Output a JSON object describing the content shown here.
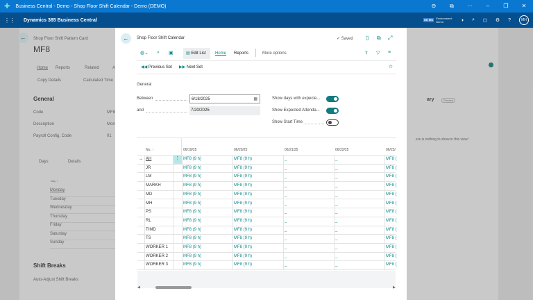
{
  "window": {
    "title": "Business Central - Demo - Shop Floor Shift Calendar - Demo (DEMO)",
    "controls": [
      "zoom-icon",
      "share-icon",
      "more-icon",
      "minimize-icon",
      "restore-icon",
      "close-icon"
    ]
  },
  "nav": {
    "app_name": "Dynamics 365 Business Central",
    "env_badge": "DE MO",
    "env_label": "Environment:",
    "env_name": "Demo",
    "avatar": "MH"
  },
  "background": {
    "breadcrumb": "Shop Floor Shift Pattern Card",
    "title": "MF8",
    "tabs": [
      "Home",
      "Reports",
      "Related",
      "A"
    ],
    "actions": [
      "Copy Details",
      "Calculated Time"
    ],
    "general": "General",
    "fields": [
      {
        "label": "Code",
        "value": "MF8"
      },
      {
        "label": "Description",
        "value": "Mon"
      },
      {
        "label": "Payroll Config. Code",
        "value": "01"
      }
    ],
    "days_tab": "Days",
    "details": "Details",
    "day_header": "Day ↑",
    "days": [
      "Monday",
      "Tuesday",
      "Wednesday",
      "Thursday",
      "Friday",
      "Saturday",
      "Sunday"
    ],
    "shift_breaks": "Shift Breaks",
    "auto_adjust": "Auto-Adjust Shift Breaks",
    "factbox_title": "ary",
    "factbox_badge": "Preview",
    "factbox_empty": "ere is nothing to show in this view!"
  },
  "modal": {
    "title": "Shop Floor Shift Calendar",
    "saved": "✓ Saved",
    "toolbar": {
      "edit_list": "Edit List",
      "home": "Home",
      "reports": "Reports",
      "more": "More options"
    },
    "actions": {
      "prev": "Previous Set",
      "next": "Next Set"
    },
    "section": "General",
    "between_label": "Between",
    "between_value": "6/18/2025",
    "and_label": "and",
    "and_value": "7/20/2025",
    "toggles": [
      {
        "label": "Show days with expecte...",
        "on": true
      },
      {
        "label": "Show Expected Attenda...",
        "on": true
      },
      {
        "label": "Show Start Time",
        "on": false
      }
    ],
    "grid": {
      "no_header": "No. ↑",
      "date_headers": [
        "06/19/25",
        "06/20/25",
        "06/21/25",
        "06/22/25",
        "06/23/"
      ],
      "rows": [
        {
          "no": "AH",
          "cells": [
            "MF8 (9 h)",
            "MF8 (9 h)",
            "_",
            "_",
            "MF8 ("
          ]
        },
        {
          "no": "JR",
          "cells": [
            "MF8 (9 h)",
            "MF8 (9 h)",
            "_",
            "_",
            "MF8 ("
          ]
        },
        {
          "no": "LM",
          "cells": [
            "MF8 (9 h)",
            "MF8 (9 h)",
            "_",
            "_",
            "MF8 ("
          ]
        },
        {
          "no": "MARKH",
          "cells": [
            "MF8 (9 h)",
            "MF8 (9 h)",
            "_",
            "_",
            "MF8 ("
          ]
        },
        {
          "no": "MD",
          "cells": [
            "MF8 (9 h)",
            "MF8 (9 h)",
            "_",
            "_",
            "MF8 ("
          ]
        },
        {
          "no": "MH",
          "cells": [
            "MF8 (9 h)",
            "MF8 (9 h)",
            "_",
            "_",
            "MF8 ("
          ]
        },
        {
          "no": "PS",
          "cells": [
            "MF8 (9 h)",
            "MF8 (9 h)",
            "_",
            "_",
            "MF8 ("
          ]
        },
        {
          "no": "RL",
          "cells": [
            "MF8 (9 h)",
            "MF8 (9 h)",
            "_",
            "_",
            "MF8 ("
          ]
        },
        {
          "no": "TIMD",
          "cells": [
            "MF8 (9 h)",
            "MF8 (9 h)",
            "_",
            "_",
            "MF8 ("
          ]
        },
        {
          "no": "TS",
          "cells": [
            "MF8 (9 h)",
            "MF8 (9 h)",
            "_",
            "_",
            "MF8 ("
          ]
        },
        {
          "no": "WORKER 1",
          "cells": [
            "MF8 (9 h)",
            "MF8 (9 h)",
            "_",
            "_",
            "MF8 ("
          ]
        },
        {
          "no": "WORKER 2",
          "cells": [
            "MF8 (9 h)",
            "MF8 (9 h)",
            "_",
            "_",
            "MF8 ("
          ]
        },
        {
          "no": "WORKER 3",
          "cells": [
            "MF8 (9 h)",
            "MF8 (9 h)",
            "_",
            "_",
            "MF8 ("
          ]
        }
      ]
    }
  },
  "colors": {
    "titlebar": "#0a78d0",
    "navbar": "#064f8f",
    "accent": "#0e8a8a"
  }
}
